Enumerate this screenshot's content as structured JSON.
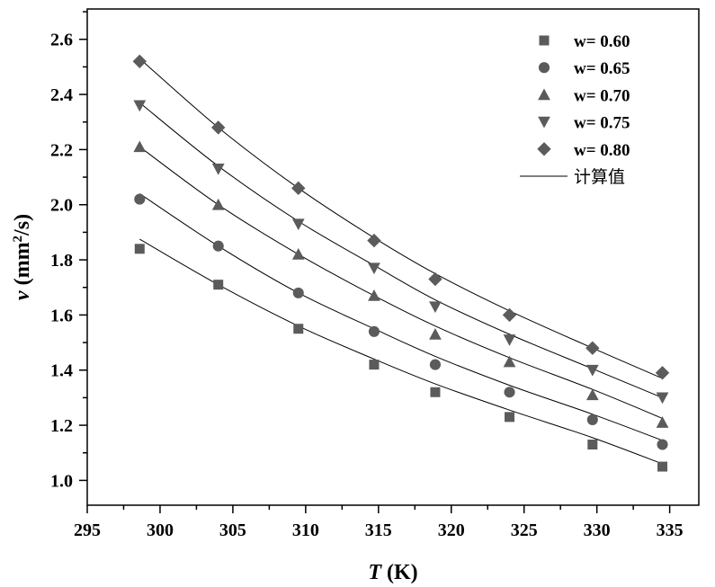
{
  "chart_data": {
    "type": "scatter",
    "title": "",
    "xlabel_var": "T",
    "xlabel_unit": " (K)",
    "ylabel_var": "v",
    "ylabel_unit_open": " (mm",
    "ylabel_unit_sup": "2",
    "ylabel_unit_close": "/s)",
    "xlim": [
      295,
      337
    ],
    "ylim": [
      0.91,
      2.71
    ],
    "xticks": [
      295,
      300,
      305,
      310,
      315,
      320,
      325,
      330,
      335
    ],
    "xtick_labels": [
      "295",
      "300",
      "305",
      "310",
      "315",
      "320",
      "325",
      "330",
      "335"
    ],
    "yticks": [
      1.0,
      1.2,
      1.4,
      1.6,
      1.8,
      2.0,
      2.2,
      2.4,
      2.6
    ],
    "ytick_labels": [
      "1.0",
      "1.2",
      "1.4",
      "1.6",
      "1.8",
      "2.0",
      "2.2",
      "2.4",
      "2.6"
    ],
    "x": [
      298.6,
      304.0,
      309.5,
      314.7,
      318.9,
      324.0,
      329.7,
      334.5
    ],
    "series": [
      {
        "name": "w= 0.60",
        "marker": "square",
        "values": [
          1.84,
          1.71,
          1.55,
          1.42,
          1.32,
          1.23,
          1.13,
          1.05
        ],
        "fit": [
          1.875,
          1.71,
          1.56,
          1.44,
          1.35,
          1.255,
          1.155,
          1.06
        ]
      },
      {
        "name": "w= 0.65",
        "marker": "circle",
        "values": [
          2.02,
          1.85,
          1.68,
          1.54,
          1.42,
          1.32,
          1.22,
          1.13
        ],
        "fit": [
          2.04,
          1.85,
          1.68,
          1.55,
          1.45,
          1.345,
          1.24,
          1.145
        ]
      },
      {
        "name": "w= 0.70",
        "marker": "triangle-up",
        "values": [
          2.21,
          2.0,
          1.82,
          1.67,
          1.53,
          1.43,
          1.31,
          1.21
        ],
        "fit": [
          2.21,
          2.0,
          1.82,
          1.67,
          1.56,
          1.445,
          1.33,
          1.225
        ]
      },
      {
        "name": "w= 0.75",
        "marker": "triangle-down",
        "values": [
          2.36,
          2.13,
          1.93,
          1.77,
          1.63,
          1.51,
          1.4,
          1.3
        ],
        "fit": [
          2.37,
          2.14,
          1.94,
          1.78,
          1.655,
          1.53,
          1.405,
          1.3
        ]
      },
      {
        "name": "w= 0.80",
        "marker": "diamond",
        "values": [
          2.52,
          2.28,
          2.06,
          1.87,
          1.73,
          1.6,
          1.48,
          1.39
        ],
        "fit": [
          2.53,
          2.28,
          2.06,
          1.88,
          1.75,
          1.615,
          1.48,
          1.37
        ]
      }
    ],
    "fit_label": "计算值",
    "legend_position": "top-right",
    "grid": false,
    "marker_color": "#5b5b5b",
    "line_color": "#000000"
  }
}
